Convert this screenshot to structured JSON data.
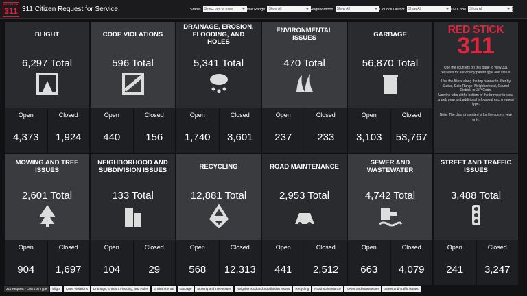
{
  "header": {
    "logo": {
      "line1": "RED STICK",
      "line2": "311"
    },
    "title": "311 Citizen Request for Service",
    "filters": [
      {
        "label": "Status",
        "value": "Select one or more"
      },
      {
        "label": "Date Range",
        "value": "Show All"
      },
      {
        "label": "Neighborhood",
        "value": "Show All"
      },
      {
        "label": "Council District",
        "value": "Show All"
      },
      {
        "label": "ZIP Code",
        "value": "Show All"
      }
    ]
  },
  "cards": [
    {
      "title": "BLIGHT",
      "total": "6,297 Total",
      "open_label": "Open",
      "open": "4,373",
      "closed_label": "Closed",
      "closed": "1,924"
    },
    {
      "title": "CODE VIOLATIONS",
      "total": "596 Total",
      "open_label": "Open",
      "open": "440",
      "closed_label": "Closed",
      "closed": "156"
    },
    {
      "title": "DRAINAGE, EROSION, FLOODING, AND HOLES",
      "total": "5,341 Total",
      "open_label": "Open",
      "open": "1,740",
      "closed_label": "Closed",
      "closed": "3,601"
    },
    {
      "title": "ENVIRONMENTAL ISSUES",
      "total": "470 Total",
      "open_label": "Open",
      "open": "237",
      "closed_label": "Closed",
      "closed": "233"
    },
    {
      "title": "GARBAGE",
      "total": "56,870 Total",
      "open_label": "Open",
      "open": "3,103",
      "closed_label": "Closed",
      "closed": "53,767"
    },
    {
      "title": "MOWING AND TREE ISSUES",
      "total": "2,601 Total",
      "open_label": "Open",
      "open": "904",
      "closed_label": "Closed",
      "closed": "1,697"
    },
    {
      "title": "NEIGHBORHOOD AND SUBDIVISION ISSUES",
      "total": "133 Total",
      "open_label": "Open",
      "open": "104",
      "closed_label": "Closed",
      "closed": "29"
    },
    {
      "title": "RECYCLING",
      "total": "12,881 Total",
      "open_label": "Open",
      "open": "568",
      "closed_label": "Closed",
      "closed": "12,313"
    },
    {
      "title": "ROAD MAINTENANCE",
      "total": "2,953 Total",
      "open_label": "Open",
      "open": "441",
      "closed_label": "Closed",
      "closed": "2,512"
    },
    {
      "title": "SEWER AND WASTEWATER",
      "total": "4,742 Total",
      "open_label": "Open",
      "open": "663",
      "closed_label": "Closed",
      "closed": "4,079"
    },
    {
      "title": "STREET AND TRAFFIC ISSUES",
      "total": "3,488 Total",
      "open_label": "Open",
      "open": "241",
      "closed_label": "Closed",
      "closed": "3,247"
    }
  ],
  "info": {
    "logo": {
      "line1": "RED STICK",
      "line2": "311"
    },
    "paragraphs": [
      "Use the counters on this page to view 311 requests for service by parent type and status.",
      "Use the filters along the top banner to filter by Status, Date Range, Neighborhood, Council District, or ZIP Code.",
      "Use the tabs at the bottom of the browser to view a web map and additional info about each request type.",
      "Note: The data presented is for the current year only."
    ]
  },
  "tabs": [
    "311 Request - Count by Type",
    "Blight",
    "Code Violations",
    "Drainage, Erosion, Flooding, and Holes",
    "Environmental",
    "Garbage",
    "Mowing and Tree Issues",
    "Neighborhood and Subdivision Issues",
    "Recycling",
    "Road Maintenance",
    "Sewer and Wastewater",
    "Street and Traffic Issues"
  ]
}
